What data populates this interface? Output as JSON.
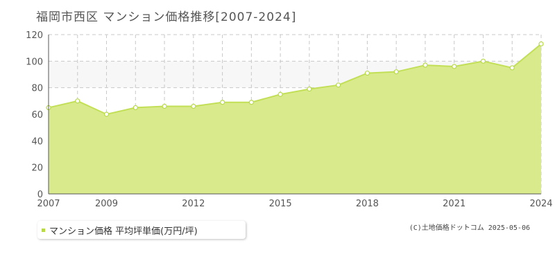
{
  "page": {
    "title": "福岡市西区 マンション価格推移[2007-2024]"
  },
  "legend": {
    "label": "マンション価格 平均坪単価(万円/坪)"
  },
  "credit": "(C)土地価格ドットコム 2025-05-06",
  "colors": {
    "area": "#d8ea8c",
    "line": "#c2df56",
    "marker": "#b8d94a",
    "band": "#f7f7f7",
    "grid": "#c8c8c8"
  },
  "chart_data": {
    "type": "area",
    "title": "福岡市西区 マンション価格推移[2007-2024]",
    "x": [
      2007,
      2008,
      2009,
      2010,
      2011,
      2012,
      2013,
      2014,
      2015,
      2016,
      2017,
      2018,
      2019,
      2020,
      2021,
      2022,
      2023,
      2024
    ],
    "series": [
      {
        "name": "マンション価格 平均坪単価(万円/坪)",
        "values": [
          65,
          70,
          60,
          65,
          66,
          66,
          69,
          69,
          75,
          79,
          82,
          91,
          92,
          97,
          96,
          100,
          95,
          113
        ]
      }
    ],
    "xlim": [
      2007,
      2024
    ],
    "ylim": [
      0,
      120
    ],
    "x_tick_labels": [
      "2007",
      "2009",
      "2012",
      "2015",
      "2018",
      "2021",
      "2024"
    ],
    "y_tick_labels": [
      "0",
      "20",
      "40",
      "60",
      "80",
      "100",
      "120"
    ],
    "grid": true,
    "legend_position": "bottom-left"
  }
}
